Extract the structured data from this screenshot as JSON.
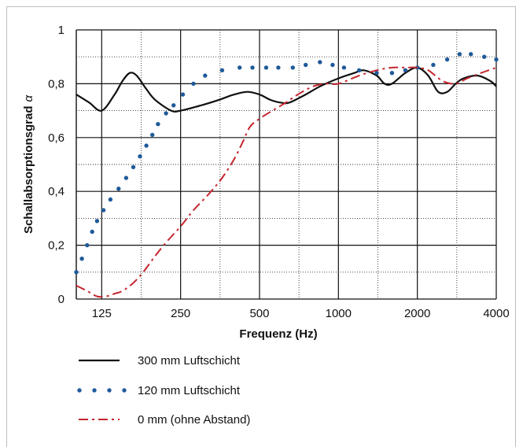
{
  "chart_data": {
    "type": "line",
    "title": "",
    "xlabel": "Frequenz (Hz)",
    "ylabel": "Schallabsorptionsgrad",
    "ylabel_symbol": "α",
    "x_scale": "log",
    "xlim": [
      100,
      4000
    ],
    "ylim": [
      0,
      1
    ],
    "x_ticks": [
      125,
      250,
      500,
      1000,
      2000,
      4000
    ],
    "x_tick_labels": [
      "125",
      "250",
      "500",
      "1000",
      "2000",
      "4000"
    ],
    "y_ticks": [
      0,
      0.2,
      0.4,
      0.6,
      0.8,
      1
    ],
    "y_tick_labels": [
      "0",
      "0,2",
      "0,4",
      "0,6",
      "0,8",
      "1"
    ],
    "grid": true,
    "legend_position": "bottom",
    "series": [
      {
        "name": "300 mm Luftschicht",
        "style": "solid",
        "color": "#111111",
        "points": [
          [
            100,
            0.76
          ],
          [
            112,
            0.73
          ],
          [
            125,
            0.7
          ],
          [
            140,
            0.76
          ],
          [
            150,
            0.81
          ],
          [
            160,
            0.84
          ],
          [
            170,
            0.83
          ],
          [
            185,
            0.78
          ],
          [
            200,
            0.74
          ],
          [
            230,
            0.7
          ],
          [
            250,
            0.7
          ],
          [
            300,
            0.72
          ],
          [
            350,
            0.74
          ],
          [
            400,
            0.76
          ],
          [
            450,
            0.77
          ],
          [
            500,
            0.76
          ],
          [
            550,
            0.74
          ],
          [
            600,
            0.73
          ],
          [
            650,
            0.73
          ],
          [
            750,
            0.76
          ],
          [
            850,
            0.79
          ],
          [
            1000,
            0.82
          ],
          [
            1150,
            0.84
          ],
          [
            1250,
            0.85
          ],
          [
            1400,
            0.83
          ],
          [
            1500,
            0.8
          ],
          [
            1600,
            0.8
          ],
          [
            1800,
            0.84
          ],
          [
            2000,
            0.86
          ],
          [
            2200,
            0.83
          ],
          [
            2400,
            0.77
          ],
          [
            2600,
            0.77
          ],
          [
            2800,
            0.8
          ],
          [
            3000,
            0.82
          ],
          [
            3400,
            0.83
          ],
          [
            3800,
            0.81
          ],
          [
            4000,
            0.79
          ]
        ]
      },
      {
        "name": "120 mm Luftschicht",
        "style": "dotted",
        "color": "#1f5a99",
        "points": [
          [
            100,
            0.1
          ],
          [
            105,
            0.15
          ],
          [
            110,
            0.2
          ],
          [
            115,
            0.25
          ],
          [
            120,
            0.29
          ],
          [
            127,
            0.33
          ],
          [
            135,
            0.37
          ],
          [
            145,
            0.41
          ],
          [
            155,
            0.45
          ],
          [
            165,
            0.49
          ],
          [
            175,
            0.53
          ],
          [
            185,
            0.57
          ],
          [
            195,
            0.61
          ],
          [
            205,
            0.65
          ],
          [
            220,
            0.69
          ],
          [
            235,
            0.72
          ],
          [
            255,
            0.76
          ],
          [
            280,
            0.8
          ],
          [
            310,
            0.83
          ],
          [
            360,
            0.85
          ],
          [
            420,
            0.86
          ],
          [
            470,
            0.86
          ],
          [
            530,
            0.86
          ],
          [
            590,
            0.86
          ],
          [
            670,
            0.86
          ],
          [
            750,
            0.87
          ],
          [
            850,
            0.88
          ],
          [
            950,
            0.87
          ],
          [
            1050,
            0.86
          ],
          [
            1200,
            0.85
          ],
          [
            1400,
            0.84
          ],
          [
            1600,
            0.84
          ],
          [
            1800,
            0.85
          ],
          [
            2000,
            0.86
          ],
          [
            2300,
            0.87
          ],
          [
            2600,
            0.89
          ],
          [
            2900,
            0.91
          ],
          [
            3200,
            0.91
          ],
          [
            3600,
            0.9
          ],
          [
            4000,
            0.89
          ]
        ]
      },
      {
        "name": "0 mm (ohne Abstand)",
        "style": "dashdot",
        "color": "#c4262e",
        "points": [
          [
            100,
            0.05
          ],
          [
            110,
            0.03
          ],
          [
            120,
            0.01
          ],
          [
            130,
            0.01
          ],
          [
            140,
            0.02
          ],
          [
            150,
            0.03
          ],
          [
            165,
            0.06
          ],
          [
            180,
            0.1
          ],
          [
            200,
            0.16
          ],
          [
            220,
            0.21
          ],
          [
            250,
            0.27
          ],
          [
            280,
            0.33
          ],
          [
            320,
            0.39
          ],
          [
            360,
            0.45
          ],
          [
            400,
            0.52
          ],
          [
            430,
            0.58
          ],
          [
            460,
            0.64
          ],
          [
            500,
            0.67
          ],
          [
            560,
            0.7
          ],
          [
            630,
            0.73
          ],
          [
            700,
            0.76
          ],
          [
            800,
            0.79
          ],
          [
            900,
            0.8
          ],
          [
            1000,
            0.8
          ],
          [
            1200,
            0.83
          ],
          [
            1400,
            0.85
          ],
          [
            1600,
            0.86
          ],
          [
            1800,
            0.86
          ],
          [
            2000,
            0.86
          ],
          [
            2200,
            0.85
          ],
          [
            2500,
            0.81
          ],
          [
            2800,
            0.8
          ],
          [
            3100,
            0.82
          ],
          [
            3500,
            0.84
          ],
          [
            4000,
            0.86
          ]
        ]
      }
    ]
  }
}
